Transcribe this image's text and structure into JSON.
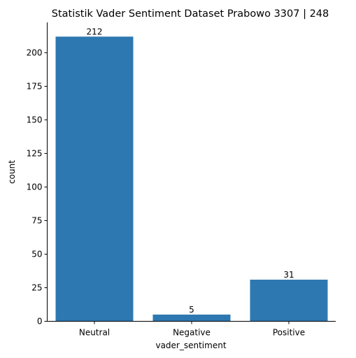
{
  "chart_data": {
    "type": "bar",
    "title": "Statistik Vader Sentiment Dataset Prabowo 3307 | 248",
    "xlabel": "vader_sentiment",
    "ylabel": "count",
    "categories": [
      "Neutral",
      "Negative",
      "Positive"
    ],
    "values": [
      212,
      5,
      31
    ],
    "data_labels": [
      "212",
      "5",
      "31"
    ],
    "yticks": [
      0,
      25,
      50,
      75,
      100,
      125,
      150,
      175,
      200
    ],
    "ylim": [
      0,
      222.6
    ],
    "grid": false,
    "legend": "none",
    "bar_color": "#2e78b1"
  }
}
